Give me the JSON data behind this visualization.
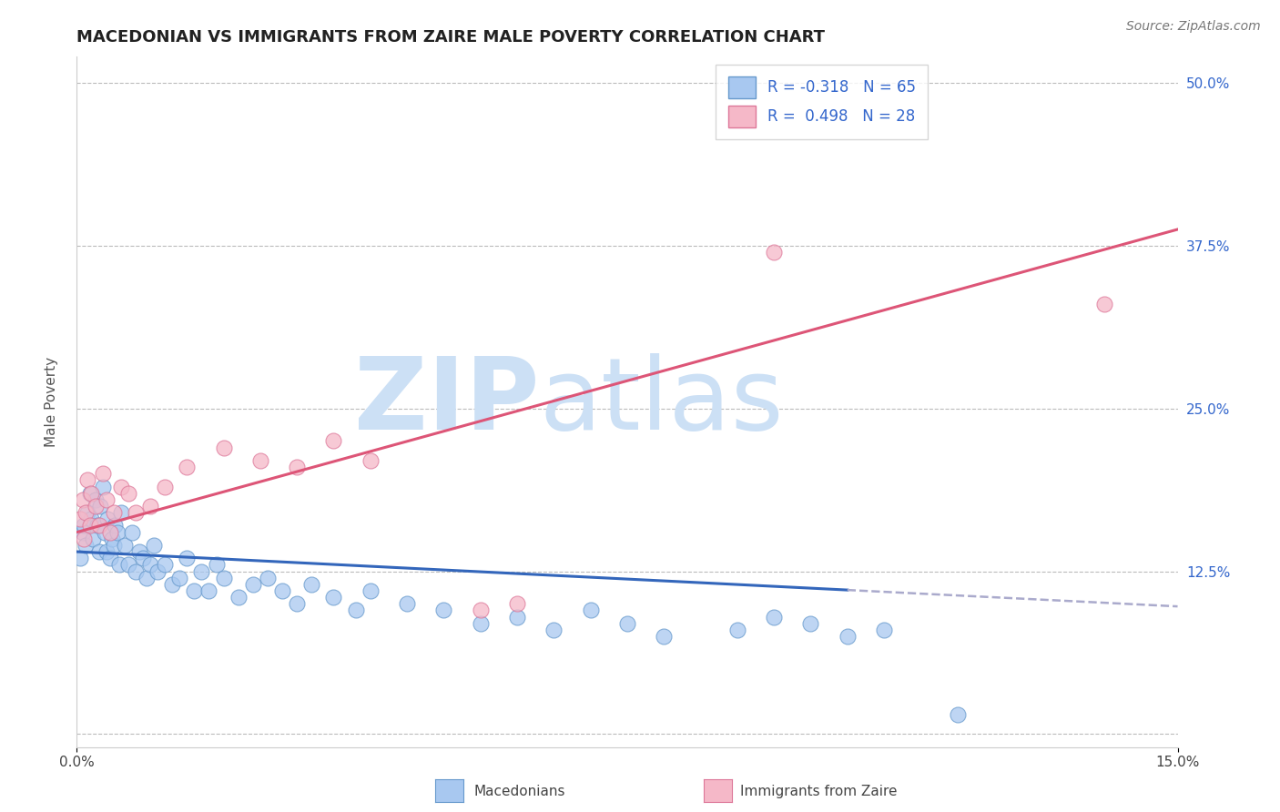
{
  "title": "MACEDONIAN VS IMMIGRANTS FROM ZAIRE MALE POVERTY CORRELATION CHART",
  "source_text": "Source: ZipAtlas.com",
  "ylabel": "Male Poverty",
  "xlim": [
    0.0,
    15.0
  ],
  "ylim": [
    -1.0,
    52.0
  ],
  "yticks": [
    0.0,
    12.5,
    25.0,
    37.5,
    50.0
  ],
  "series1_label": "Macedonians",
  "series1_color": "#a8c8f0",
  "series1_edge_color": "#6699cc",
  "series1_R": -0.318,
  "series1_N": 65,
  "series1_line_color": "#3366bb",
  "series1_line_color_dash": "#aaaacc",
  "series2_label": "Immigrants from Zaire",
  "series2_color": "#f5b8c8",
  "series2_edge_color": "#dd7799",
  "series2_R": 0.498,
  "series2_N": 28,
  "series2_line_color": "#dd5577",
  "grid_color": "#bbbbbb",
  "watermark_zip": "ZIP",
  "watermark_atlas": "atlas",
  "watermark_color": "#cce0f5",
  "background_color": "#ffffff",
  "title_fontsize": 13,
  "legend_fontsize": 12,
  "macedonians_x": [
    0.05,
    0.08,
    0.1,
    0.12,
    0.15,
    0.18,
    0.2,
    0.22,
    0.25,
    0.28,
    0.3,
    0.32,
    0.35,
    0.38,
    0.4,
    0.42,
    0.45,
    0.48,
    0.5,
    0.52,
    0.55,
    0.58,
    0.6,
    0.65,
    0.7,
    0.75,
    0.8,
    0.85,
    0.9,
    0.95,
    1.0,
    1.05,
    1.1,
    1.2,
    1.3,
    1.4,
    1.5,
    1.6,
    1.7,
    1.8,
    1.9,
    2.0,
    2.2,
    2.4,
    2.6,
    2.8,
    3.0,
    3.2,
    3.5,
    3.8,
    4.0,
    4.5,
    5.0,
    5.5,
    6.0,
    6.5,
    7.0,
    7.5,
    8.0,
    9.0,
    9.5,
    10.0,
    10.5,
    11.0,
    12.0
  ],
  "macedonians_y": [
    13.5,
    15.5,
    16.0,
    14.5,
    17.0,
    18.5,
    16.5,
    15.0,
    18.0,
    16.0,
    14.0,
    17.5,
    19.0,
    15.5,
    14.0,
    16.5,
    13.5,
    15.0,
    14.5,
    16.0,
    15.5,
    13.0,
    17.0,
    14.5,
    13.0,
    15.5,
    12.5,
    14.0,
    13.5,
    12.0,
    13.0,
    14.5,
    12.5,
    13.0,
    11.5,
    12.0,
    13.5,
    11.0,
    12.5,
    11.0,
    13.0,
    12.0,
    10.5,
    11.5,
    12.0,
    11.0,
    10.0,
    11.5,
    10.5,
    9.5,
    11.0,
    10.0,
    9.5,
    8.5,
    9.0,
    8.0,
    9.5,
    8.5,
    7.5,
    8.0,
    9.0,
    8.5,
    7.5,
    8.0,
    1.5
  ],
  "zaire_x": [
    0.05,
    0.08,
    0.1,
    0.12,
    0.15,
    0.18,
    0.2,
    0.25,
    0.3,
    0.35,
    0.4,
    0.45,
    0.5,
    0.6,
    0.7,
    0.8,
    1.0,
    1.2,
    1.5,
    2.0,
    2.5,
    3.0,
    3.5,
    4.0,
    5.5,
    6.0,
    9.5,
    14.0
  ],
  "zaire_y": [
    16.5,
    18.0,
    15.0,
    17.0,
    19.5,
    16.0,
    18.5,
    17.5,
    16.0,
    20.0,
    18.0,
    15.5,
    17.0,
    19.0,
    18.5,
    17.0,
    17.5,
    19.0,
    20.5,
    22.0,
    21.0,
    20.5,
    22.5,
    21.0,
    9.5,
    10.0,
    37.0,
    33.0
  ],
  "slope1": -0.28,
  "intercept1": 14.0,
  "slope2": 1.55,
  "intercept2": 15.5,
  "line1_x_start": 0.0,
  "line1_x_solid_end": 10.5,
  "line1_x_dash_end": 15.0,
  "line2_x_start": 0.0,
  "line2_x_end": 15.0
}
